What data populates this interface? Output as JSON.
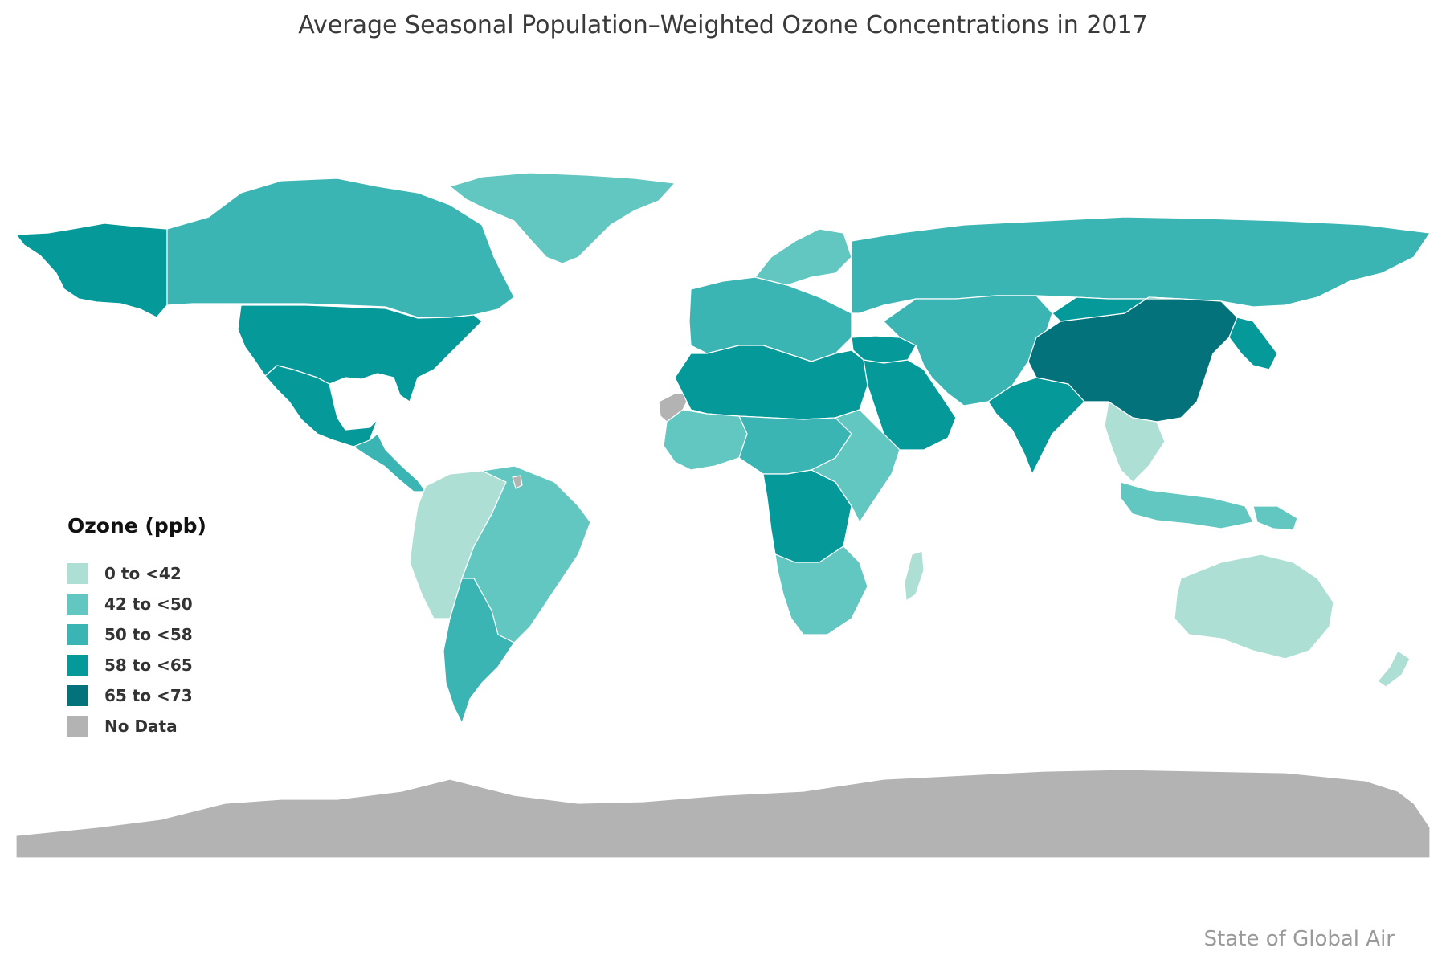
{
  "title": "Average Seasonal Population–Weighted Ozone Concentrations in 2017",
  "legend": {
    "title": "Ozone (ppb)",
    "items": [
      {
        "label": "0 to <42",
        "color": "#aedfd4"
      },
      {
        "label": "42 to <50",
        "color": "#62c6c1"
      },
      {
        "label": "50 to <58",
        "color": "#3ab5b4"
      },
      {
        "label": "58 to <65",
        "color": "#05999a"
      },
      {
        "label": "65 to <73",
        "color": "#04727a"
      },
      {
        "label": "No Data",
        "color": "#b3b3b3"
      }
    ]
  },
  "credit": "State of Global Air",
  "regions": [
    {
      "name": "Alaska",
      "category": "58 to <65"
    },
    {
      "name": "Canada",
      "category": "50 to <58"
    },
    {
      "name": "Greenland",
      "category": "42 to <50"
    },
    {
      "name": "United States",
      "category": "58 to <65"
    },
    {
      "name": "Mexico",
      "category": "58 to <65"
    },
    {
      "name": "Central America",
      "category": "50 to <58"
    },
    {
      "name": "Northwest South America",
      "category": "0 to <42"
    },
    {
      "name": "Brazil",
      "category": "42 to <50"
    },
    {
      "name": "Southern South America",
      "category": "50 to <58"
    },
    {
      "name": "Western Europe",
      "category": "50 to <58"
    },
    {
      "name": "Scandinavia",
      "category": "42 to <50"
    },
    {
      "name": "Russia",
      "category": "50 to <58"
    },
    {
      "name": "Turkey",
      "category": "58 to <65"
    },
    {
      "name": "Middle East",
      "category": "58 to <65"
    },
    {
      "name": "Iran and Central Asia",
      "category": "50 to <58"
    },
    {
      "name": "India",
      "category": "58 to <65"
    },
    {
      "name": "China",
      "category": "65 to <73"
    },
    {
      "name": "Mongolia",
      "category": "58 to <65"
    },
    {
      "name": "Korea and Japan",
      "category": "58 to <65"
    },
    {
      "name": "Southeast Asia",
      "category": "0 to <42"
    },
    {
      "name": "Indonesia",
      "category": "42 to <50"
    },
    {
      "name": "North Africa",
      "category": "58 to <65"
    },
    {
      "name": "West Africa",
      "category": "42 to <50"
    },
    {
      "name": "Central Africa",
      "category": "50 to <58"
    },
    {
      "name": "Congo Basin",
      "category": "58 to <65"
    },
    {
      "name": "East Africa",
      "category": "42 to <50"
    },
    {
      "name": "Southern Africa",
      "category": "42 to <50"
    },
    {
      "name": "Madagascar",
      "category": "0 to <42"
    },
    {
      "name": "Australia",
      "category": "0 to <42"
    },
    {
      "name": "New Zealand",
      "category": "0 to <42"
    },
    {
      "name": "Papua New Guinea",
      "category": "42 to <50"
    },
    {
      "name": "Western Sahara",
      "category": "No Data"
    },
    {
      "name": "French Guiana",
      "category": "No Data"
    },
    {
      "name": "Antarctica",
      "category": "No Data"
    }
  ]
}
